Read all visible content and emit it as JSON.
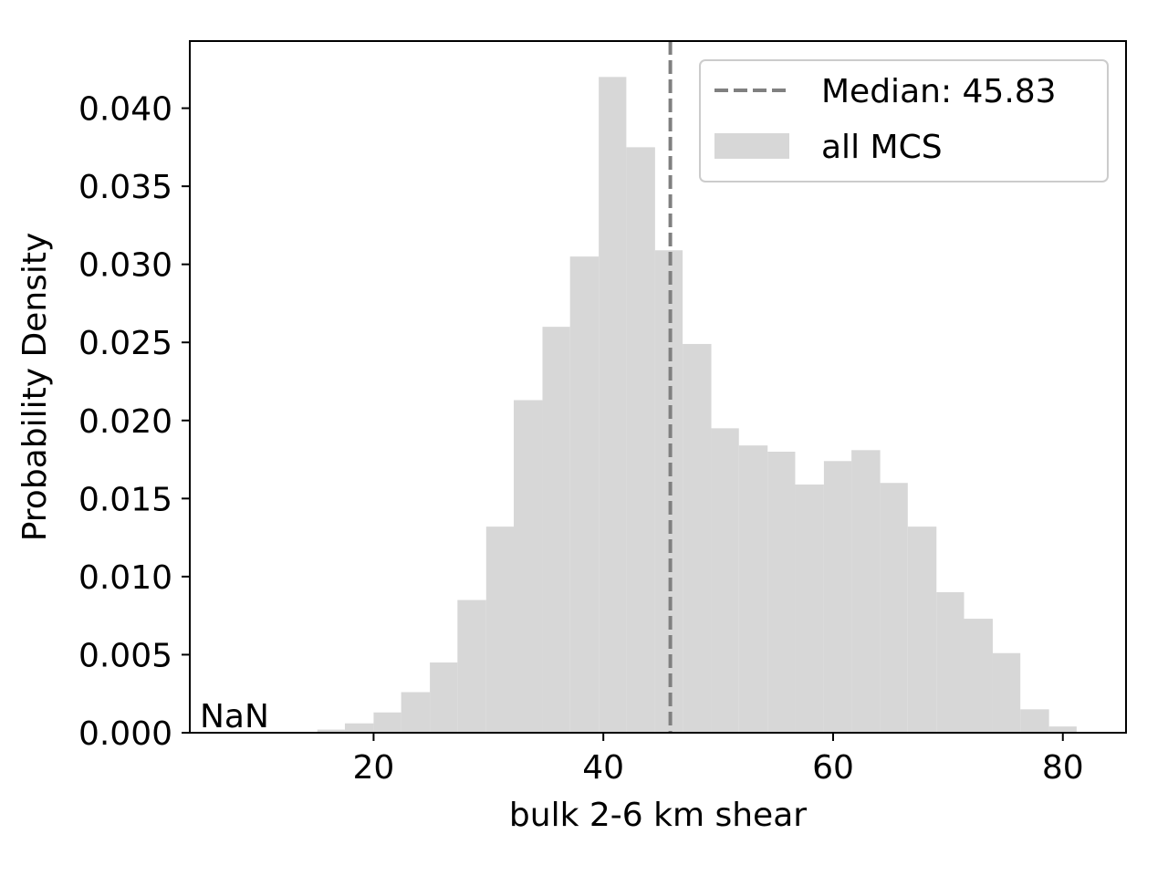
{
  "chart_data": {
    "type": "bar",
    "histogram": true,
    "xlabel": "bulk 2-6 km shear",
    "ylabel": "Probability Density",
    "xlim": [
      4,
      85.5
    ],
    "ylim": [
      0,
      0.0443
    ],
    "xticks": [
      20,
      40,
      60,
      80
    ],
    "xtick_labels": [
      "20",
      "40",
      "60",
      "80"
    ],
    "yticks": [
      0,
      0.005,
      0.01,
      0.015,
      0.02,
      0.025,
      0.03,
      0.035,
      0.04
    ],
    "ytick_labels": [
      "0.000",
      "0.005",
      "0.010",
      "0.015",
      "0.020",
      "0.025",
      "0.030",
      "0.035",
      "0.040"
    ],
    "bin_edges": [
      15.1,
      17.5,
      20.0,
      22.4,
      24.9,
      27.3,
      29.8,
      32.2,
      34.7,
      37.1,
      39.6,
      42.0,
      44.5,
      46.9,
      49.4,
      51.8,
      54.3,
      56.7,
      59.2,
      61.6,
      64.1,
      66.5,
      69.0,
      71.4,
      73.9,
      76.3,
      78.8,
      81.2
    ],
    "values": [
      0.0002,
      0.0006,
      0.0013,
      0.0026,
      0.0045,
      0.0085,
      0.0132,
      0.0213,
      0.026,
      0.0305,
      0.042,
      0.0375,
      0.0309,
      0.0249,
      0.0195,
      0.0184,
      0.018,
      0.0159,
      0.0174,
      0.0181,
      0.016,
      0.0132,
      0.009,
      0.0073,
      0.0051,
      0.0015,
      0.0004
    ],
    "bar_color": "#d7d7d7",
    "median": 45.83,
    "median_color": "#808080",
    "legend": {
      "placement": "upper-right",
      "entries": [
        "Median: 45.83",
        "all MCS"
      ]
    },
    "annotation": "NaN",
    "grid": false
  }
}
